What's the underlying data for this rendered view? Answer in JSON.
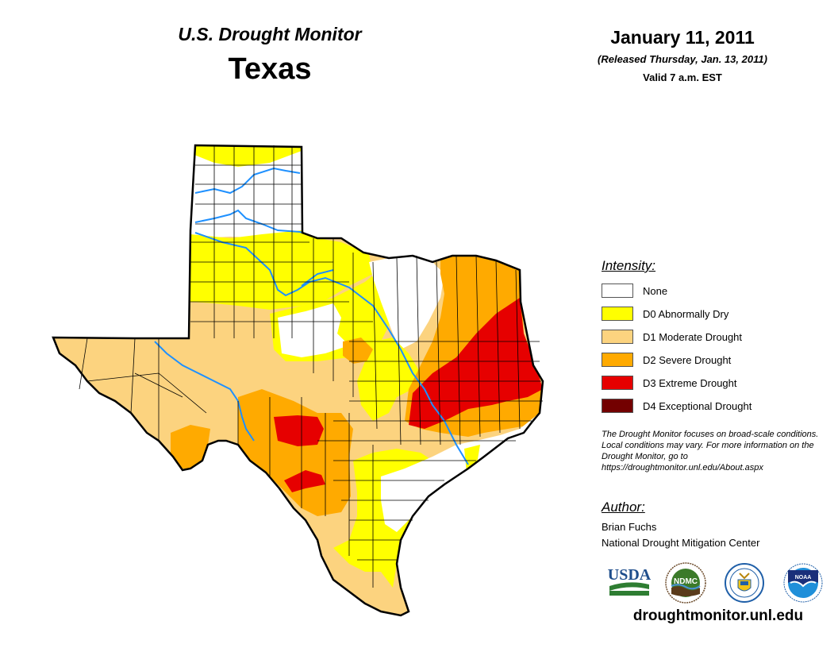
{
  "header": {
    "title": "U.S. Drought Monitor",
    "state": "Texas",
    "date": "January 11, 2011",
    "released": "(Released Thursday, Jan. 13, 2011)",
    "valid": "Valid 7 a.m. EST"
  },
  "legend": {
    "title": "Intensity:",
    "items": [
      {
        "label": "None",
        "color": "#ffffff"
      },
      {
        "label": "D0 Abnormally Dry",
        "color": "#ffff00"
      },
      {
        "label": "D1 Moderate Drought",
        "color": "#fcd37f"
      },
      {
        "label": "D2 Severe Drought",
        "color": "#ffaa00"
      },
      {
        "label": "D3 Extreme Drought",
        "color": "#e60000"
      },
      {
        "label": "D4 Exceptional Drought",
        "color": "#730000"
      }
    ]
  },
  "note": "The Drought Monitor focuses on broad-scale conditions. Local conditions may vary. For more information on the Drought Monitor, go to https://droughtmonitor.unl.edu/About.aspx",
  "author": {
    "title": "Author:",
    "name": "Brian Fuchs",
    "org": "National Drought Mitigation Center"
  },
  "logos": [
    {
      "name": "usda-logo",
      "text": "USDA"
    },
    {
      "name": "ndmc-logo",
      "text": "NDMC"
    },
    {
      "name": "doc-logo",
      "text": ""
    },
    {
      "name": "noaa-logo",
      "text": "NOAA"
    }
  ],
  "website": "droughtmonitor.unl.edu",
  "colors": {
    "river": "#1e90ff",
    "border": "#000000"
  }
}
